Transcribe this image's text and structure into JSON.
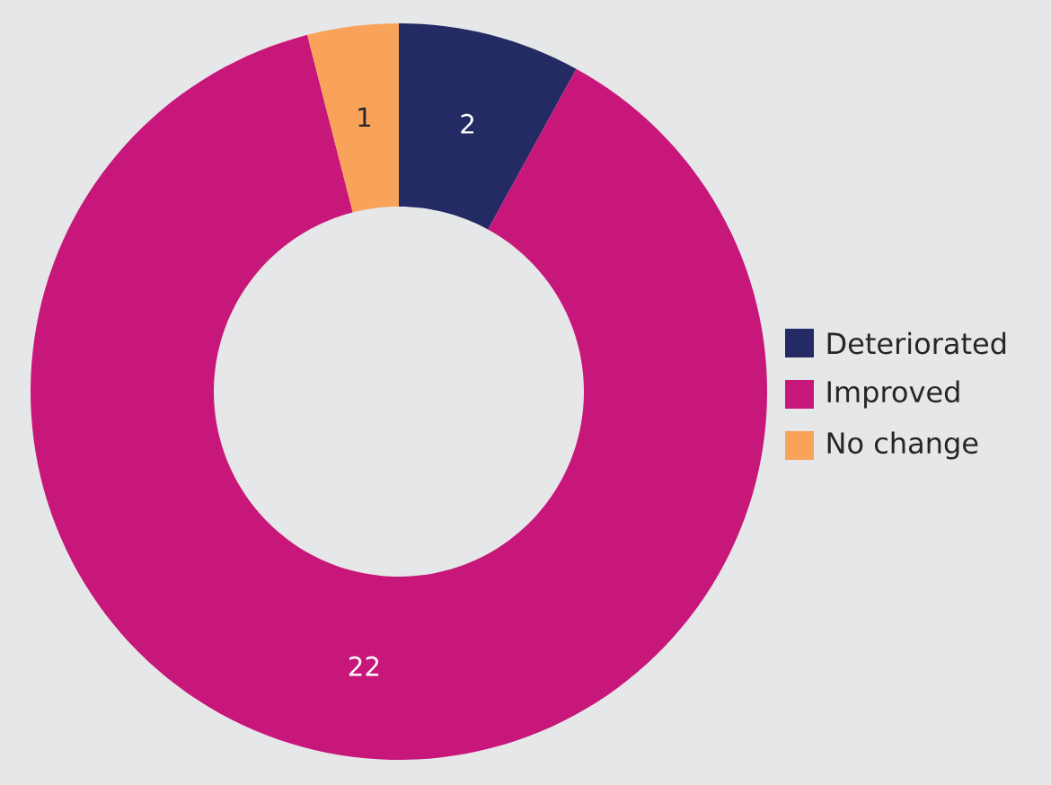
{
  "chart_data": {
    "type": "donut",
    "categories": [
      "Deteriorated",
      "Improved",
      "No change"
    ],
    "values": [
      2,
      22,
      1
    ],
    "colors": [
      "#232a64",
      "#c8177b",
      "#f9a35a"
    ],
    "data_labels": true,
    "legend": "right"
  }
}
